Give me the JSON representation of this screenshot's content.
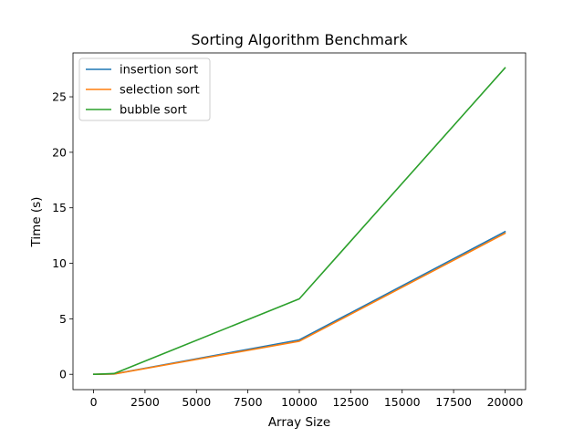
{
  "chart_data": {
    "type": "line",
    "title": "Sorting Algorithm Benchmark",
    "xlabel": "Array Size",
    "ylabel": "Time (s)",
    "x": [
      10,
      100,
      1000,
      10000,
      20000
    ],
    "xlim": [
      -1000,
      21000
    ],
    "ylim": [
      -1.38,
      28.95
    ],
    "xticks": [
      0,
      2500,
      5000,
      7500,
      10000,
      12500,
      15000,
      17500,
      20000
    ],
    "yticks": [
      0,
      5,
      10,
      15,
      20,
      25
    ],
    "grid": false,
    "legend_position": "top-left",
    "series": [
      {
        "name": "insertion sort",
        "color": "#1f77b4",
        "values": [
          0.0,
          0.0,
          0.03,
          3.1,
          12.85
        ]
      },
      {
        "name": "selection sort",
        "color": "#ff7f0e",
        "values": [
          0.0,
          0.0,
          0.03,
          2.98,
          12.7
        ]
      },
      {
        "name": "bubble sort",
        "color": "#2ca02c",
        "values": [
          0.0,
          0.0,
          0.07,
          6.8,
          27.6
        ]
      }
    ]
  }
}
